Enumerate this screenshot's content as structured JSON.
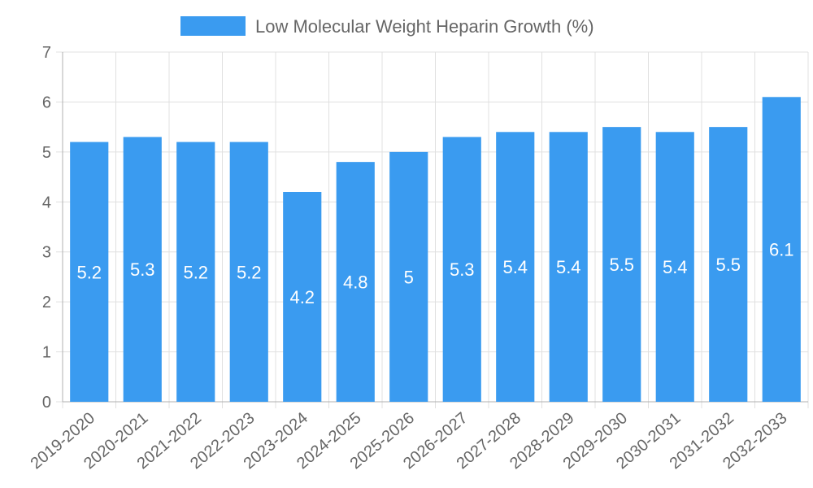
{
  "chart_data": {
    "type": "bar",
    "categories": [
      "2019-2020",
      "2020-2021",
      "2021-2022",
      "2022-2023",
      "2023-2024",
      "2024-2025",
      "2025-2026",
      "2026-2027",
      "2027-2028",
      "2028-2029",
      "2029-2030",
      "2030-2031",
      "2031-2032",
      "2032-2033"
    ],
    "series": [
      {
        "name": "Low Molecular Weight Heparin Growth (%)",
        "values": [
          5.2,
          5.3,
          5.2,
          5.2,
          4.2,
          4.8,
          5,
          5.3,
          5.4,
          5.4,
          5.5,
          5.4,
          5.5,
          6.1
        ],
        "color": "#3a9bf0"
      }
    ],
    "title": "",
    "xlabel": "",
    "ylabel": "",
    "ylim": [
      0,
      7
    ],
    "yticks": [
      0,
      1,
      2,
      3,
      4,
      5,
      6,
      7
    ],
    "grid": true,
    "legend_position": "top-center",
    "data_labels": true
  }
}
